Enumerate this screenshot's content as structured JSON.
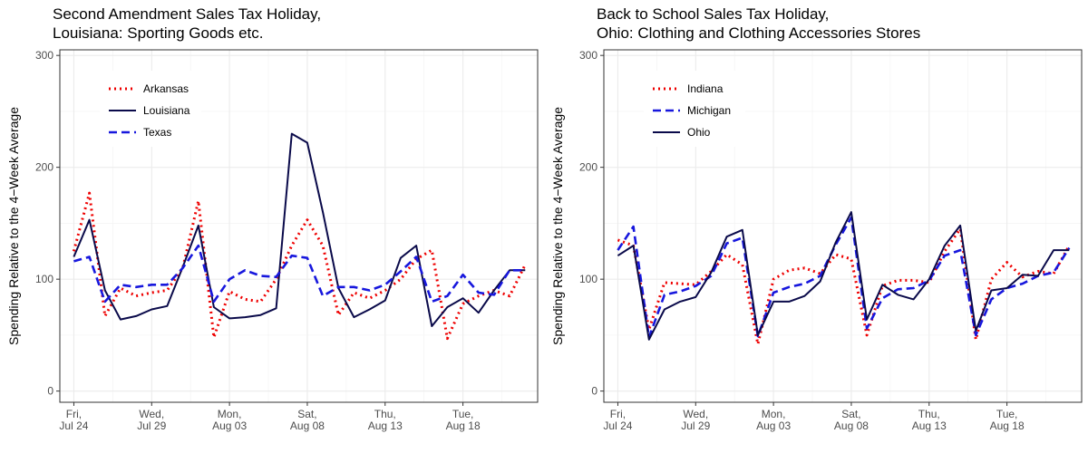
{
  "chart_data": [
    {
      "type": "line",
      "title_line1": "Second Amendment Sales Tax Holiday,",
      "title_line2": "Louisiana: Sporting Goods etc.",
      "ylabel": "Spending Relative to the 4−Week Average",
      "xlabel": "",
      "ylim": [
        -10,
        305
      ],
      "yticks": [
        0,
        100,
        200,
        300
      ],
      "xticks": [
        {
          "day": 0,
          "line1": "Fri,",
          "line2": "Jul 24"
        },
        {
          "day": 5,
          "line1": "Wed,",
          "line2": "Jul 29"
        },
        {
          "day": 10,
          "line1": "Mon,",
          "line2": "Aug 03"
        },
        {
          "day": 15,
          "line1": "Sat,",
          "line2": "Aug 08"
        },
        {
          "day": 20,
          "line1": "Thu,",
          "line2": "Aug 13"
        },
        {
          "day": 25,
          "line1": "Tue,",
          "line2": "Aug 18"
        }
      ],
      "xlim": [
        -0.9,
        29.8
      ],
      "grid": true,
      "legend_position": "top-left",
      "series": [
        {
          "name": "Arkansas",
          "style": "dotted",
          "color": "#ee0000",
          "x": [
            0,
            1,
            2,
            3,
            4,
            5,
            6,
            7,
            8,
            9,
            10,
            11,
            12,
            13,
            14,
            15,
            16,
            17,
            18,
            19,
            20,
            21,
            22,
            23,
            24,
            25,
            26,
            27,
            28,
            29
          ],
          "values": [
            125,
            177,
            67,
            92,
            85,
            88,
            90,
            110,
            170,
            48,
            89,
            82,
            80,
            100,
            130,
            153,
            130,
            68,
            88,
            83,
            90,
            100,
            118,
            126,
            47,
            78,
            85,
            90,
            85,
            113
          ]
        },
        {
          "name": "Louisiana",
          "style": "solid",
          "color": "#0a0a4a",
          "x": [
            0,
            1,
            2,
            3,
            4,
            5,
            6,
            7,
            8,
            9,
            10,
            11,
            12,
            13,
            14,
            15,
            16,
            17,
            18,
            19,
            20,
            21,
            22,
            23,
            24,
            25,
            26,
            27,
            28,
            29
          ],
          "values": [
            120,
            153,
            90,
            64,
            67,
            73,
            76,
            111,
            148,
            75,
            65,
            66,
            68,
            74,
            230,
            222,
            160,
            92,
            66,
            73,
            81,
            119,
            130,
            58,
            75,
            83,
            70,
            90,
            108,
            108
          ]
        },
        {
          "name": "Texas",
          "style": "dashed",
          "color": "#1717dd",
          "x": [
            0,
            1,
            2,
            3,
            4,
            5,
            6,
            7,
            8,
            9,
            10,
            11,
            12,
            13,
            14,
            15,
            16,
            17,
            18,
            19,
            20,
            21,
            22,
            23,
            24,
            25,
            26,
            27,
            28,
            29
          ],
          "values": [
            116,
            120,
            80,
            95,
            93,
            95,
            95,
            110,
            130,
            80,
            100,
            108,
            103,
            102,
            121,
            119,
            85,
            93,
            93,
            90,
            95,
            107,
            120,
            80,
            85,
            104,
            88,
            86,
            108,
            108
          ]
        }
      ]
    },
    {
      "type": "line",
      "title_line1": "Back to School Sales Tax Holiday,",
      "title_line2": "Ohio: Clothing and Clothing Accessories Stores",
      "ylabel": "Spending Relative to the 4−Week Average",
      "xlabel": "",
      "ylim": [
        -10,
        305
      ],
      "yticks": [
        0,
        100,
        200,
        300
      ],
      "xticks": [
        {
          "day": 0,
          "line1": "Fri,",
          "line2": "Jul 24"
        },
        {
          "day": 5,
          "line1": "Wed,",
          "line2": "Jul 29"
        },
        {
          "day": 10,
          "line1": "Mon,",
          "line2": "Aug 03"
        },
        {
          "day": 15,
          "line1": "Sat,",
          "line2": "Aug 08"
        },
        {
          "day": 20,
          "line1": "Thu,",
          "line2": "Aug 13"
        },
        {
          "day": 25,
          "line1": "Tue,",
          "line2": "Aug 18"
        }
      ],
      "xlim": [
        -0.9,
        29.8
      ],
      "grid": true,
      "legend_position": "top-left",
      "series": [
        {
          "name": "Indiana",
          "style": "dotted",
          "color": "#ee0000",
          "x": [
            0,
            1,
            2,
            3,
            4,
            5,
            6,
            7,
            8,
            9,
            10,
            11,
            12,
            13,
            14,
            15,
            16,
            17,
            18,
            19,
            20,
            21,
            22,
            23,
            24,
            25,
            26,
            27,
            28,
            29
          ],
          "values": [
            135,
            130,
            55,
            97,
            96,
            95,
            107,
            122,
            113,
            42,
            100,
            108,
            110,
            105,
            122,
            118,
            50,
            94,
            99,
            99,
            97,
            125,
            145,
            46,
            100,
            115,
            102,
            107,
            105,
            130
          ]
        },
        {
          "name": "Michigan",
          "style": "dashed",
          "color": "#1717dd",
          "x": [
            0,
            1,
            2,
            3,
            4,
            5,
            6,
            7,
            8,
            9,
            10,
            11,
            12,
            13,
            14,
            15,
            16,
            17,
            18,
            19,
            20,
            21,
            22,
            23,
            24,
            25,
            26,
            27,
            28,
            29
          ],
          "values": [
            126,
            147,
            48,
            86,
            89,
            94,
            103,
            132,
            137,
            49,
            88,
            93,
            96,
            103,
            131,
            155,
            56,
            83,
            91,
            92,
            99,
            121,
            126,
            50,
            82,
            92,
            96,
            103,
            106,
            128
          ]
        },
        {
          "name": "Ohio",
          "style": "solid",
          "color": "#0a0a4a",
          "x": [
            0,
            1,
            2,
            3,
            4,
            5,
            6,
            7,
            8,
            9,
            10,
            11,
            12,
            13,
            14,
            15,
            16,
            17,
            18,
            19,
            20,
            21,
            22,
            23,
            24,
            25,
            26,
            27,
            28,
            29
          ],
          "values": [
            121,
            130,
            46,
            73,
            80,
            84,
            106,
            138,
            144,
            50,
            80,
            80,
            85,
            98,
            133,
            160,
            64,
            95,
            86,
            82,
            100,
            130,
            148,
            54,
            90,
            92,
            104,
            103,
            126,
            126
          ]
        }
      ]
    }
  ]
}
